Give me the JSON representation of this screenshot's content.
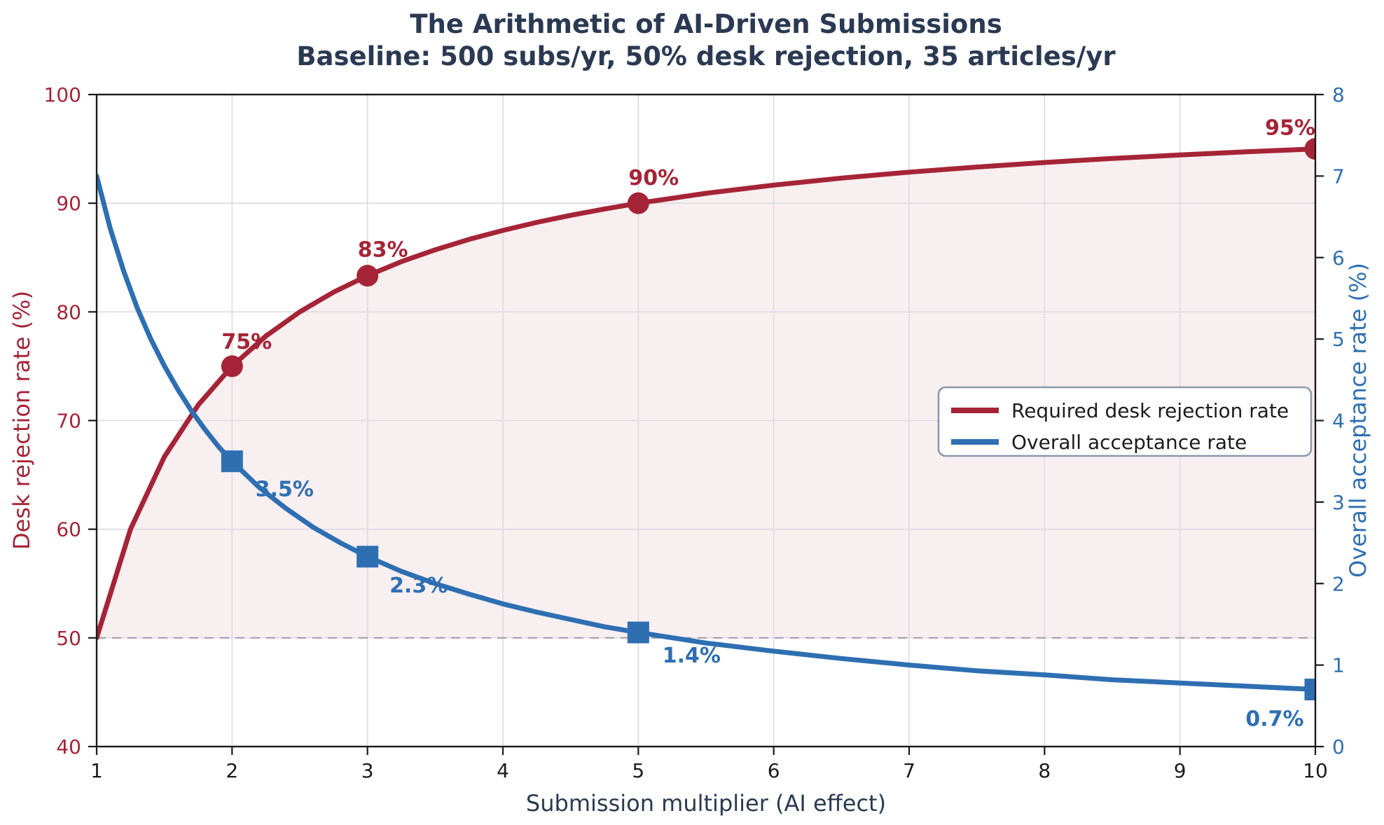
{
  "chart_data": {
    "type": "line",
    "title": "The Arithmetic of AI-Driven Submissions",
    "subtitle": "Baseline: 500 subs/yr, 50% desk rejection, 35 articles/yr",
    "xlabel": "Submission multiplier (AI effect)",
    "grid": {
      "show": true,
      "color": "#dcdae3"
    },
    "x_axis": {
      "min": 1,
      "max": 10,
      "ticks": [
        1,
        2,
        3,
        4,
        5,
        6,
        7,
        8,
        9,
        10
      ]
    },
    "y_left": {
      "label": "Desk rejection rate (%)",
      "min": 40,
      "max": 100,
      "ticks": [
        40,
        50,
        60,
        70,
        80,
        90,
        100
      ],
      "color": "#a62437"
    },
    "y_right": {
      "label": "Overall acceptance rate (%)",
      "min": 0,
      "max": 8,
      "ticks": [
        0,
        1,
        2,
        3,
        4,
        5,
        6,
        7,
        8
      ],
      "color": "#2e6fb2"
    },
    "baseline": {
      "value": 50,
      "axis": "left",
      "color": "#a49fab",
      "style": "dashed"
    },
    "series": [
      {
        "name": "Required desk rejection rate",
        "axis": "left",
        "color": "#a62437",
        "marker": "circle",
        "fill_to_baseline": true,
        "fill_color": "rgba(166,36,55,0.075)",
        "points": [
          [
            1,
            50
          ],
          [
            1.25,
            60
          ],
          [
            1.5,
            66.67
          ],
          [
            1.75,
            71.43
          ],
          [
            2,
            75
          ],
          [
            2.25,
            77.78
          ],
          [
            2.5,
            80
          ],
          [
            2.75,
            81.82
          ],
          [
            3,
            83.33
          ],
          [
            3.25,
            84.62
          ],
          [
            3.5,
            85.71
          ],
          [
            3.75,
            86.67
          ],
          [
            4,
            87.5
          ],
          [
            4.25,
            88.24
          ],
          [
            4.5,
            88.89
          ],
          [
            4.75,
            89.47
          ],
          [
            5,
            90
          ],
          [
            5.5,
            90.91
          ],
          [
            6,
            91.67
          ],
          [
            6.5,
            92.31
          ],
          [
            7,
            92.86
          ],
          [
            7.5,
            93.33
          ],
          [
            8,
            93.75
          ],
          [
            8.5,
            94.12
          ],
          [
            9,
            94.44
          ],
          [
            9.5,
            94.74
          ],
          [
            10,
            95
          ]
        ],
        "markers": [
          {
            "x": 2,
            "y": 75,
            "label": "75%",
            "dx": 21,
            "dy": -25
          },
          {
            "x": 3,
            "y": 83.33,
            "label": "83%",
            "dx": 22,
            "dy": -27
          },
          {
            "x": 5,
            "y": 90,
            "label": "90%",
            "dx": 22,
            "dy": -26
          },
          {
            "x": 10,
            "y": 95,
            "label": "95%",
            "dx": -36,
            "dy": -20
          }
        ]
      },
      {
        "name": "Overall acceptance rate",
        "axis": "right",
        "color": "#2e6fb2",
        "marker": "square",
        "fill_to_baseline": false,
        "points": [
          [
            1,
            7
          ],
          [
            1.1,
            6.36
          ],
          [
            1.2,
            5.83
          ],
          [
            1.3,
            5.38
          ],
          [
            1.4,
            5
          ],
          [
            1.5,
            4.67
          ],
          [
            1.6,
            4.38
          ],
          [
            1.7,
            4.12
          ],
          [
            1.8,
            3.89
          ],
          [
            1.9,
            3.68
          ],
          [
            2,
            3.5
          ],
          [
            2.2,
            3.18
          ],
          [
            2.4,
            2.92
          ],
          [
            2.6,
            2.69
          ],
          [
            2.8,
            2.5
          ],
          [
            3,
            2.33
          ],
          [
            3.25,
            2.15
          ],
          [
            3.5,
            2
          ],
          [
            3.75,
            1.87
          ],
          [
            4,
            1.75
          ],
          [
            4.25,
            1.65
          ],
          [
            4.5,
            1.56
          ],
          [
            4.75,
            1.47
          ],
          [
            5,
            1.4
          ],
          [
            5.5,
            1.27
          ],
          [
            6,
            1.17
          ],
          [
            6.5,
            1.08
          ],
          [
            7,
            1
          ],
          [
            7.5,
            0.93
          ],
          [
            8,
            0.88
          ],
          [
            8.5,
            0.82
          ],
          [
            9,
            0.78
          ],
          [
            9.5,
            0.74
          ],
          [
            10,
            0.7
          ]
        ],
        "markers": [
          {
            "x": 2,
            "y": 3.5,
            "label": "3.5%",
            "dx": 75,
            "dy": 50
          },
          {
            "x": 3,
            "y": 2.33,
            "label": "2.3%",
            "dx": 73,
            "dy": 51
          },
          {
            "x": 5,
            "y": 1.4,
            "label": "1.4%",
            "dx": 76,
            "dy": 43
          },
          {
            "x": 10,
            "y": 0.7,
            "label": "0.7%",
            "dx": -58,
            "dy": 52
          }
        ]
      }
    ],
    "legend": {
      "entries": [
        "Required desk rejection rate",
        "Overall acceptance rate"
      ],
      "border_color": "#8a97ad",
      "background": "#ffffff",
      "position": "center-right"
    },
    "title_color": "#2b3a52",
    "tick_color": "#1c1c1c"
  }
}
